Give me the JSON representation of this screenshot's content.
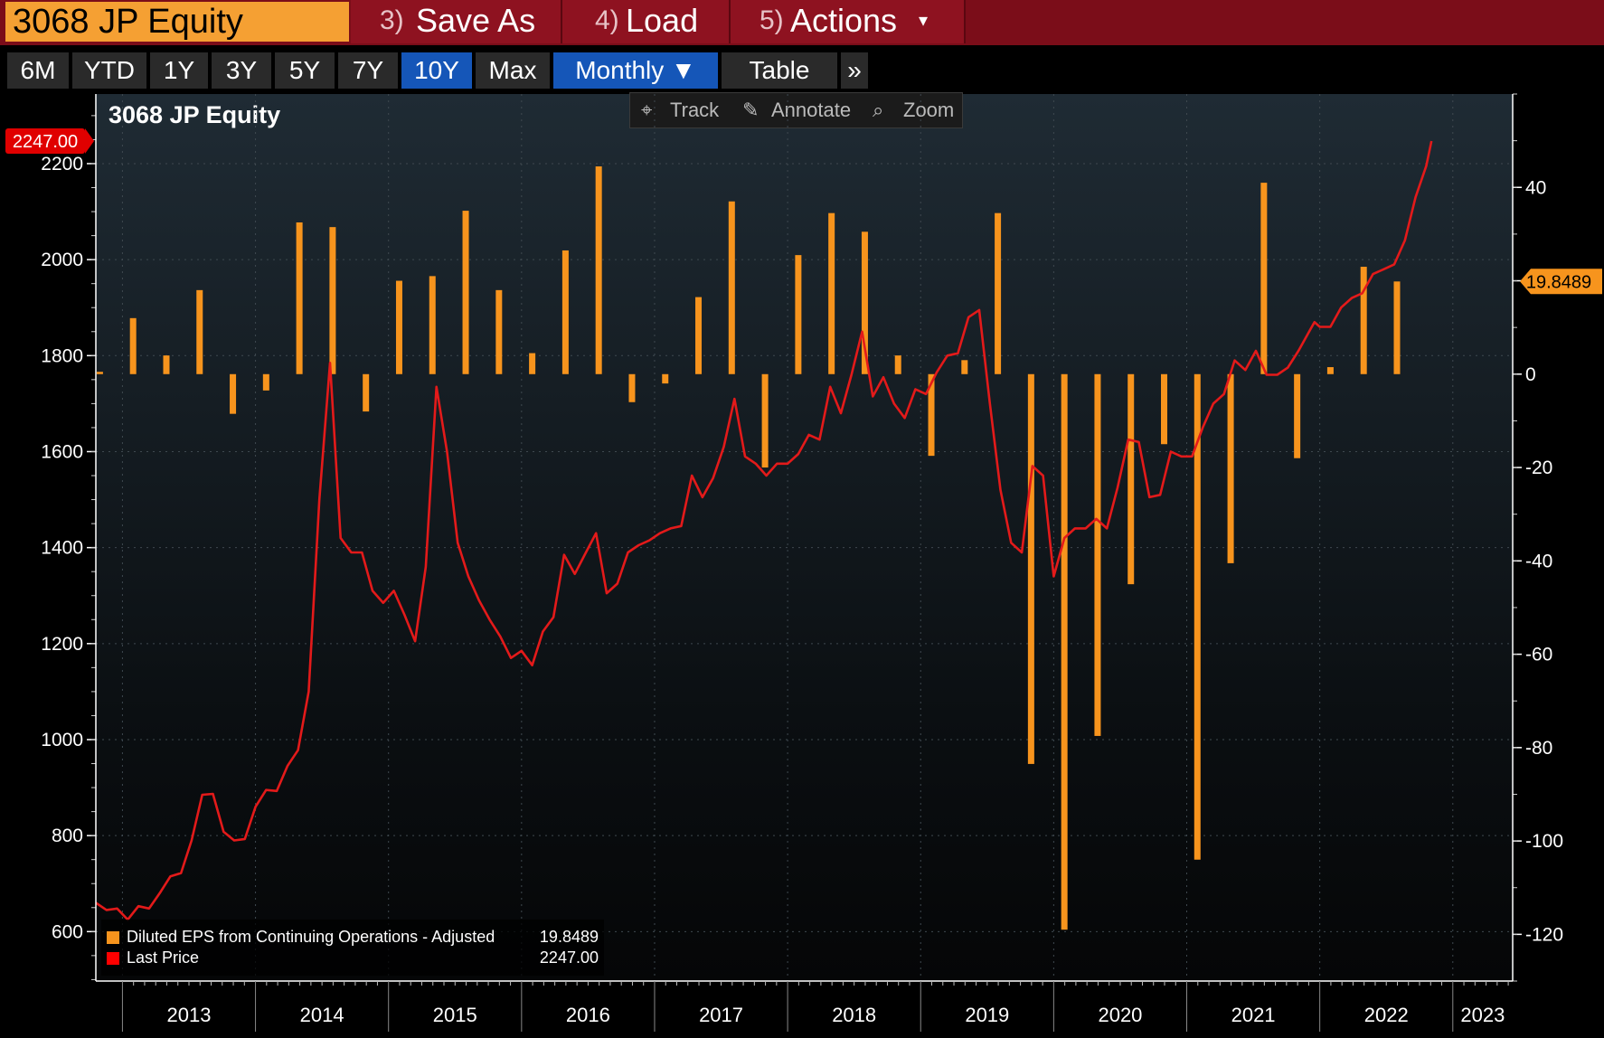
{
  "header": {
    "ticker": "3068 JP Equity",
    "buttons": [
      {
        "num": "3)",
        "label": "Save As"
      },
      {
        "num": "4)",
        "label": "Load"
      },
      {
        "num": "5)",
        "label": "Actions",
        "caret": "▾"
      }
    ]
  },
  "periods": {
    "items": [
      "6M",
      "YTD",
      "1Y",
      "3Y",
      "5Y",
      "7Y",
      "10Y",
      "Max"
    ],
    "active": "10Y",
    "frequency": "Monthly ▼",
    "table": "Table",
    "more": "»"
  },
  "chart_title": "3068 JP Equity",
  "toolbar": {
    "track": "Track",
    "annotate": "Annotate",
    "zoom": "Zoom"
  },
  "legend": [
    {
      "label": "Diluted EPS from Continuing Operations - Adjusted",
      "value": "19.8489",
      "color": "#f7941d"
    },
    {
      "label": "Last Price",
      "value": "2247.00",
      "color": "#ff0000"
    }
  ],
  "colors": {
    "eps": "#f7941d",
    "price": "#e31a1a",
    "topbar": "#7b0d19",
    "ticker_bg": "#f5a033",
    "active": "#1556b8"
  },
  "chart_data": {
    "type": "bar+line",
    "title": "3068 JP Equity",
    "x_labels": [
      "2013",
      "2014",
      "2015",
      "2016",
      "2017",
      "2018",
      "2019",
      "2020",
      "2021",
      "2022",
      "2023"
    ],
    "x_range": [
      2012.8,
      2023.45
    ],
    "left_axis": {
      "ticks": [
        600,
        800,
        1000,
        1200,
        1400,
        1600,
        1800,
        2000,
        2200
      ],
      "range": [
        497,
        2345
      ],
      "series": "Last Price"
    },
    "right_axis": {
      "ticks": [
        -120,
        -100,
        -80,
        -60,
        -40,
        -20,
        0,
        20,
        40
      ],
      "range": [
        -130,
        60
      ],
      "series": "Diluted EPS"
    },
    "last_price_tag": "2247.00",
    "last_eps_tag": "19.8489",
    "series": [
      {
        "name": "Diluted EPS from Continuing Operations - Adjusted",
        "kind": "bar",
        "axis": "right",
        "points": [
          [
            2012.83,
            0.5
          ],
          [
            2013.08,
            12
          ],
          [
            2013.33,
            4
          ],
          [
            2013.58,
            18
          ],
          [
            2013.83,
            -8.5
          ],
          [
            2014.08,
            -3.5
          ],
          [
            2014.33,
            32.5
          ],
          [
            2014.58,
            31.5
          ],
          [
            2014.83,
            -8
          ],
          [
            2015.08,
            20
          ],
          [
            2015.33,
            21
          ],
          [
            2015.58,
            35
          ],
          [
            2015.83,
            18
          ],
          [
            2016.08,
            4.5
          ],
          [
            2016.33,
            26.5
          ],
          [
            2016.58,
            44.5
          ],
          [
            2016.83,
            -6
          ],
          [
            2017.08,
            -2
          ],
          [
            2017.33,
            16.5
          ],
          [
            2017.58,
            37
          ],
          [
            2017.83,
            -20
          ],
          [
            2018.08,
            25.5
          ],
          [
            2018.33,
            34.5
          ],
          [
            2018.58,
            30.5
          ],
          [
            2018.83,
            4
          ],
          [
            2019.08,
            -17.5
          ],
          [
            2019.33,
            3
          ],
          [
            2019.58,
            34.5
          ],
          [
            2019.83,
            -83.5
          ],
          [
            2020.08,
            -119
          ],
          [
            2020.33,
            -77.5
          ],
          [
            2020.58,
            -45
          ],
          [
            2020.83,
            -15
          ],
          [
            2021.08,
            -104
          ],
          [
            2021.33,
            -40.5
          ],
          [
            2021.58,
            41
          ],
          [
            2021.83,
            -18
          ],
          [
            2022.08,
            1.5
          ],
          [
            2022.33,
            23
          ],
          [
            2022.58,
            19.8489
          ]
        ]
      },
      {
        "name": "Last Price",
        "kind": "line",
        "axis": "left",
        "points": [
          [
            2012.8,
            660
          ],
          [
            2012.88,
            645
          ],
          [
            2012.96,
            648
          ],
          [
            2013.04,
            625
          ],
          [
            2013.12,
            653
          ],
          [
            2013.2,
            648
          ],
          [
            2013.28,
            680
          ],
          [
            2013.36,
            715
          ],
          [
            2013.44,
            722
          ],
          [
            2013.52,
            790
          ],
          [
            2013.6,
            885
          ],
          [
            2013.68,
            887
          ],
          [
            2013.76,
            808
          ],
          [
            2013.84,
            790
          ],
          [
            2013.92,
            793
          ],
          [
            2014.0,
            860
          ],
          [
            2014.08,
            895
          ],
          [
            2014.16,
            893
          ],
          [
            2014.24,
            945
          ],
          [
            2014.32,
            978
          ],
          [
            2014.4,
            1100
          ],
          [
            2014.48,
            1500
          ],
          [
            2014.56,
            1785
          ],
          [
            2014.64,
            1420
          ],
          [
            2014.72,
            1390
          ],
          [
            2014.8,
            1390
          ],
          [
            2014.88,
            1310
          ],
          [
            2014.96,
            1285
          ],
          [
            2015.04,
            1310
          ],
          [
            2015.12,
            1260
          ],
          [
            2015.2,
            1205
          ],
          [
            2015.28,
            1360
          ],
          [
            2015.36,
            1735
          ],
          [
            2015.44,
            1600
          ],
          [
            2015.52,
            1410
          ],
          [
            2015.6,
            1340
          ],
          [
            2015.68,
            1290
          ],
          [
            2015.76,
            1250
          ],
          [
            2015.84,
            1215
          ],
          [
            2015.92,
            1170
          ],
          [
            2016.0,
            1185
          ],
          [
            2016.08,
            1155
          ],
          [
            2016.16,
            1225
          ],
          [
            2016.24,
            1255
          ],
          [
            2016.32,
            1385
          ],
          [
            2016.4,
            1345
          ],
          [
            2016.48,
            1388
          ],
          [
            2016.56,
            1430
          ],
          [
            2016.64,
            1305
          ],
          [
            2016.72,
            1325
          ],
          [
            2016.8,
            1390
          ],
          [
            2016.88,
            1405
          ],
          [
            2016.96,
            1415
          ],
          [
            2017.04,
            1430
          ],
          [
            2017.12,
            1440
          ],
          [
            2017.2,
            1445
          ],
          [
            2017.28,
            1550
          ],
          [
            2017.36,
            1505
          ],
          [
            2017.44,
            1545
          ],
          [
            2017.52,
            1610
          ],
          [
            2017.6,
            1710
          ],
          [
            2017.68,
            1590
          ],
          [
            2017.76,
            1575
          ],
          [
            2017.84,
            1550
          ],
          [
            2017.92,
            1575
          ],
          [
            2018.0,
            1575
          ],
          [
            2018.08,
            1595
          ],
          [
            2018.16,
            1635
          ],
          [
            2018.24,
            1625
          ],
          [
            2018.32,
            1735
          ],
          [
            2018.4,
            1680
          ],
          [
            2018.48,
            1760
          ],
          [
            2018.56,
            1850
          ],
          [
            2018.64,
            1715
          ],
          [
            2018.72,
            1755
          ],
          [
            2018.8,
            1700
          ],
          [
            2018.88,
            1670
          ],
          [
            2018.96,
            1730
          ],
          [
            2019.04,
            1720
          ],
          [
            2019.12,
            1765
          ],
          [
            2019.2,
            1800
          ],
          [
            2019.28,
            1805
          ],
          [
            2019.36,
            1880
          ],
          [
            2019.44,
            1895
          ],
          [
            2019.52,
            1700
          ],
          [
            2019.6,
            1520
          ],
          [
            2019.68,
            1410
          ],
          [
            2019.76,
            1390
          ],
          [
            2019.84,
            1570
          ],
          [
            2019.92,
            1550
          ],
          [
            2020.0,
            1340
          ],
          [
            2020.08,
            1420
          ],
          [
            2020.16,
            1440
          ],
          [
            2020.24,
            1440
          ],
          [
            2020.32,
            1460
          ],
          [
            2020.4,
            1440
          ],
          [
            2020.48,
            1525
          ],
          [
            2020.56,
            1625
          ],
          [
            2020.64,
            1620
          ],
          [
            2020.72,
            1505
          ],
          [
            2020.8,
            1510
          ],
          [
            2020.88,
            1600
          ],
          [
            2020.96,
            1590
          ],
          [
            2021.04,
            1590
          ],
          [
            2021.12,
            1650
          ],
          [
            2021.2,
            1700
          ],
          [
            2021.28,
            1720
          ],
          [
            2021.36,
            1790
          ],
          [
            2021.44,
            1770
          ],
          [
            2021.52,
            1810
          ],
          [
            2021.6,
            1760
          ],
          [
            2021.68,
            1760
          ],
          [
            2021.76,
            1775
          ],
          [
            2021.84,
            1810
          ],
          [
            2021.92,
            1850
          ],
          [
            2021.96,
            1870
          ],
          [
            2022.0,
            1860
          ],
          [
            2022.08,
            1860
          ],
          [
            2022.16,
            1900
          ],
          [
            2022.24,
            1920
          ],
          [
            2022.32,
            1930
          ],
          [
            2022.4,
            1970
          ],
          [
            2022.48,
            1980
          ],
          [
            2022.56,
            1990
          ],
          [
            2022.64,
            2040
          ],
          [
            2022.72,
            2130
          ],
          [
            2022.8,
            2195
          ],
          [
            2022.84,
            2247
          ]
        ]
      }
    ]
  }
}
